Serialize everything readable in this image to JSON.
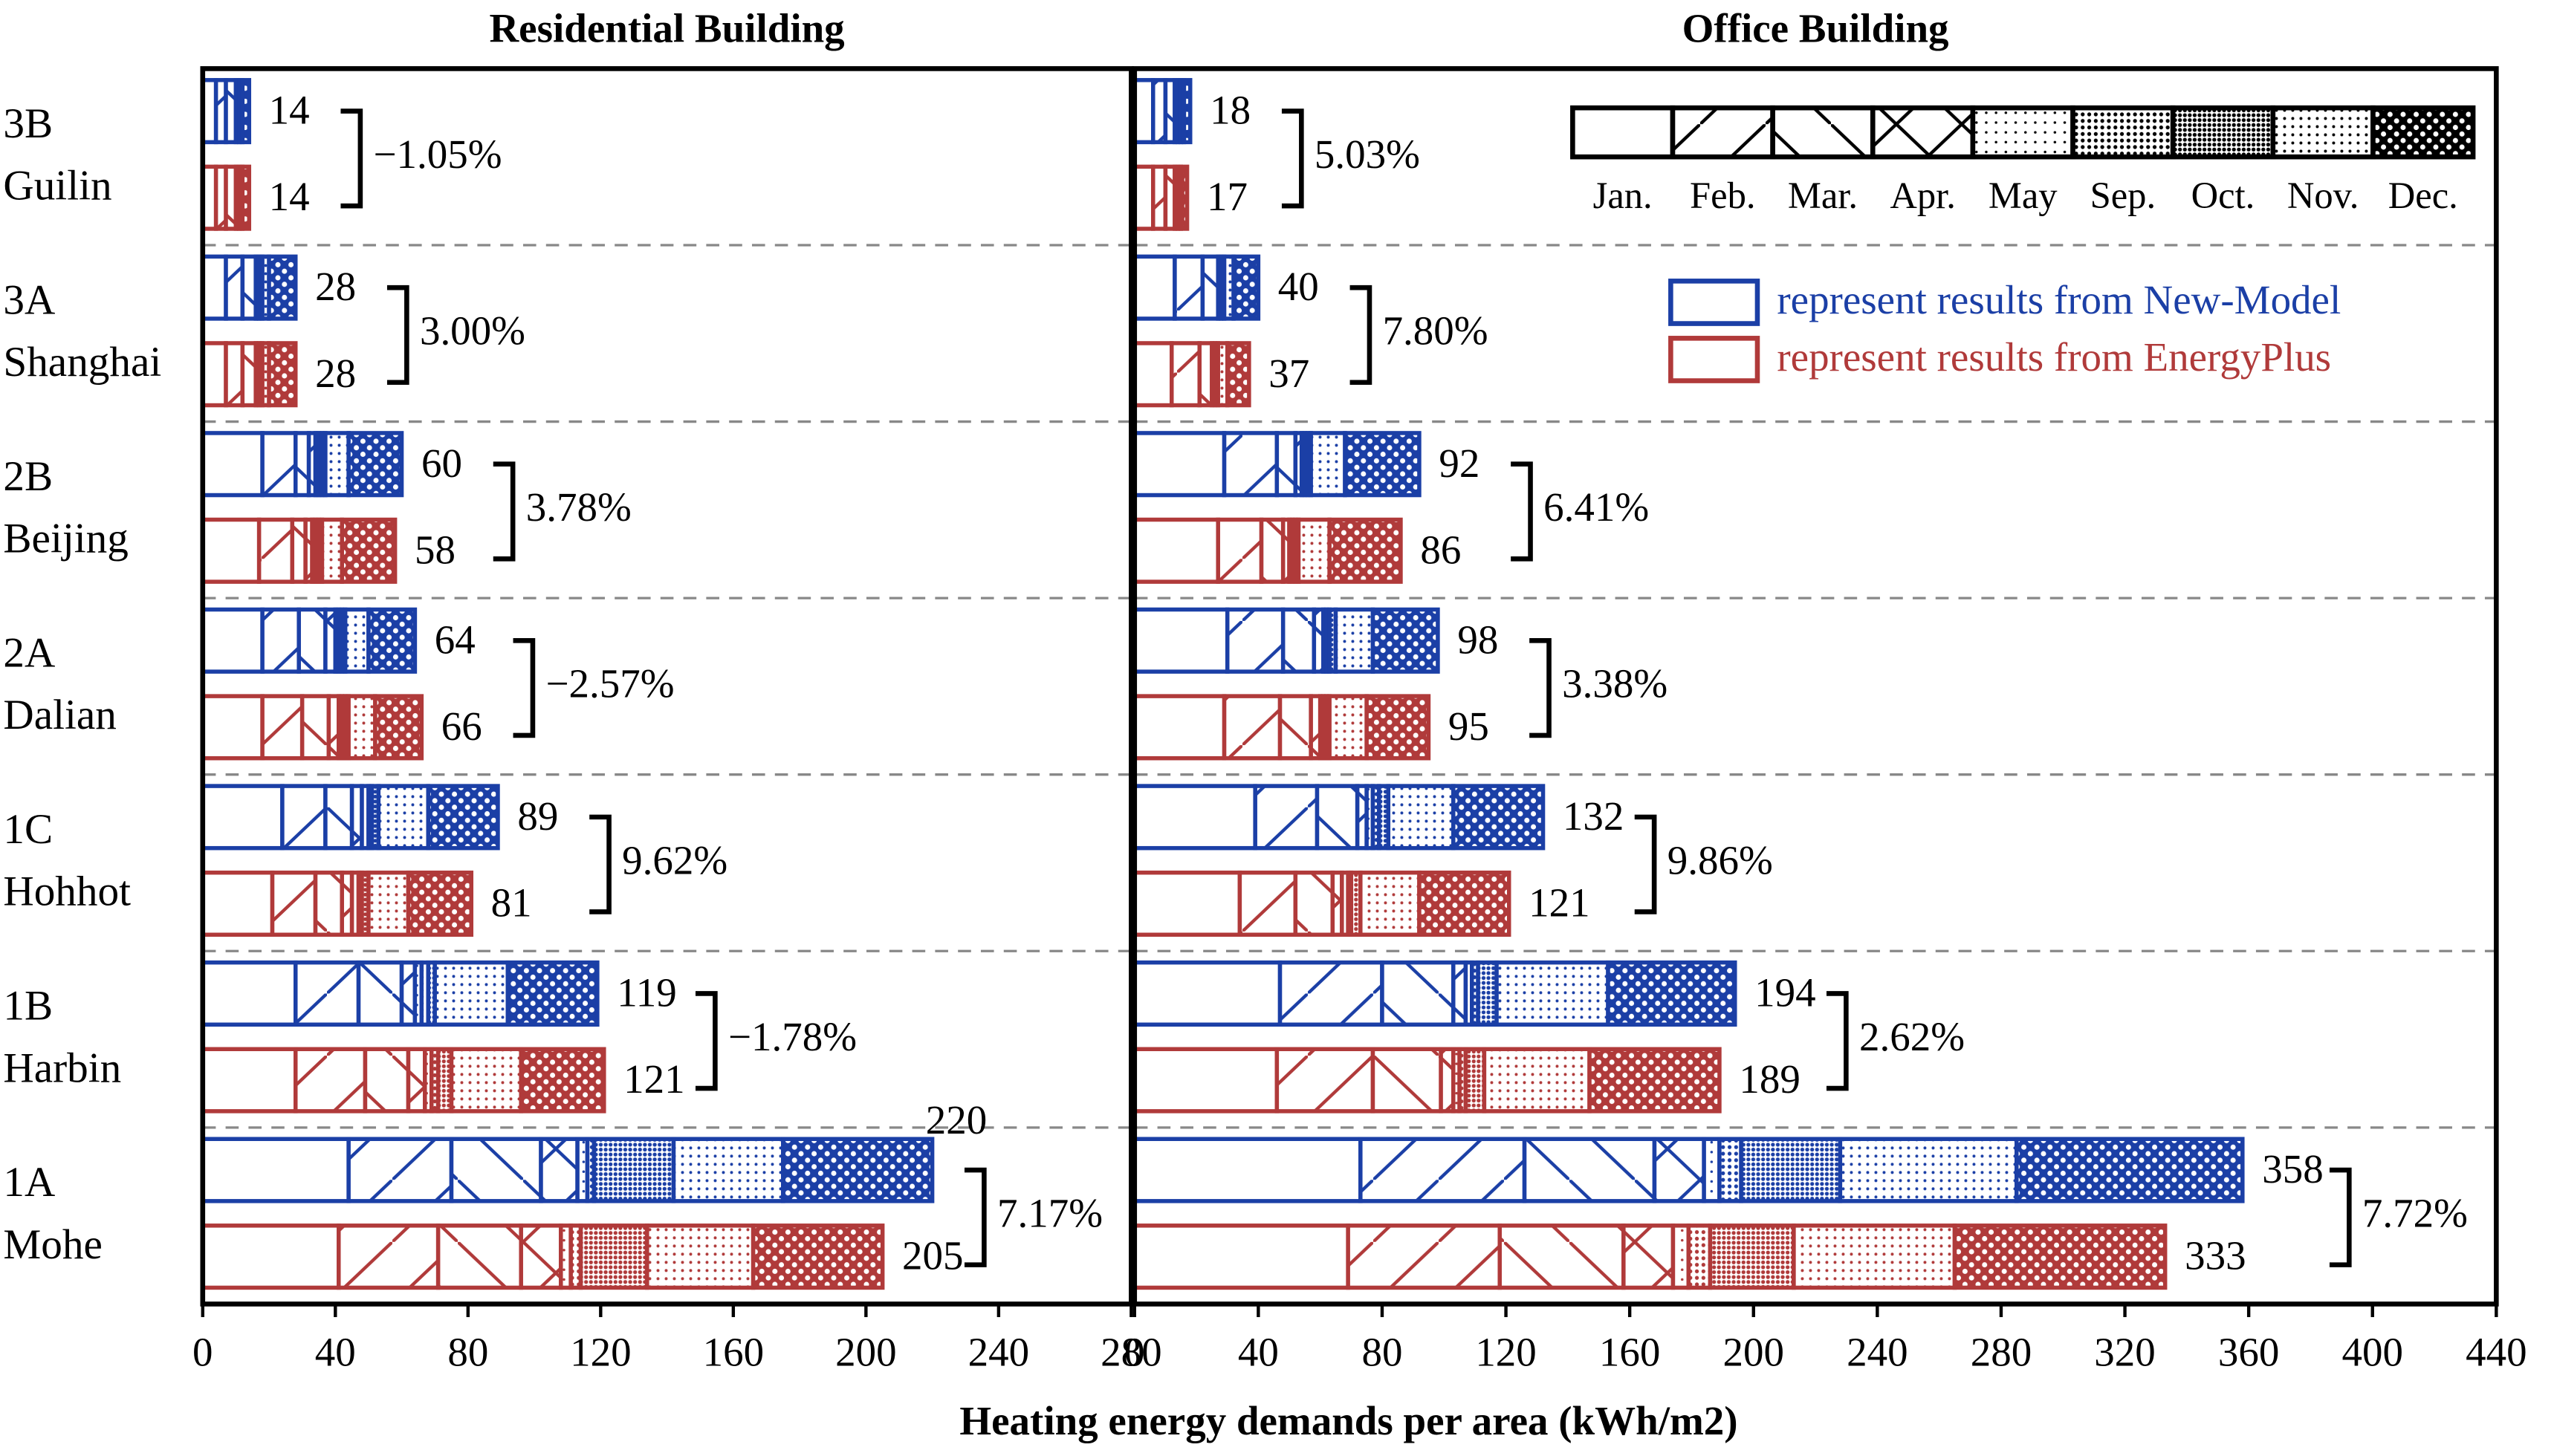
{
  "chart_data": [
    {
      "type": "bar",
      "title": "Residential Building",
      "categories": [
        "3B\nGuilin",
        "3A\nShanghai",
        "2B\nBeijing",
        "2A\nDalian",
        "1C\nHohhot",
        "1B\nHarbin",
        "1A\nMohe"
      ],
      "xlim": [
        0,
        280
      ],
      "xticks": [
        0,
        40,
        80,
        120,
        160,
        200,
        240,
        280
      ],
      "new_model": [
        [
          4,
          3,
          3,
          1,
          0,
          0,
          0,
          1,
          2
        ],
        [
          7,
          5,
          4,
          1,
          1,
          0,
          0,
          2,
          8
        ],
        [
          18,
          10,
          4,
          2,
          1,
          1,
          1,
          7,
          16
        ],
        [
          18,
          11,
          8,
          3,
          1,
          1,
          1,
          7,
          14
        ],
        [
          24,
          13,
          8,
          3,
          2,
          1,
          2,
          15,
          21
        ],
        [
          28,
          19,
          13,
          4,
          2,
          2,
          2,
          22,
          27
        ],
        [
          44,
          31,
          27,
          11,
          3,
          2,
          24,
          33,
          45
        ]
      ],
      "energyplus": [
        [
          4,
          3,
          3,
          1,
          0,
          0,
          0,
          1,
          2
        ],
        [
          7,
          5,
          4,
          1,
          1,
          0,
          0,
          2,
          8
        ],
        [
          17,
          10,
          4,
          2,
          1,
          1,
          1,
          6,
          16
        ],
        [
          18,
          12,
          8,
          3,
          1,
          1,
          1,
          8,
          14
        ],
        [
          21,
          13,
          8,
          3,
          2,
          1,
          2,
          12,
          19
        ],
        [
          28,
          21,
          13,
          5,
          2,
          2,
          4,
          21,
          25
        ],
        [
          41,
          30,
          25,
          12,
          3,
          3,
          20,
          32,
          39
        ]
      ],
      "new_model_totals": [
        14,
        28,
        60,
        64,
        89,
        119,
        220
      ],
      "energyplus_totals": [
        14,
        28,
        58,
        66,
        81,
        121,
        205
      ],
      "differences": [
        "−1.05%",
        "3.00%",
        "3.78%",
        "−2.57%",
        "9.62%",
        "−1.78%",
        "7.17%"
      ]
    },
    {
      "type": "bar",
      "title": "Office Building",
      "xlim": [
        0,
        440
      ],
      "xticks": [
        0,
        40,
        80,
        120,
        160,
        200,
        240,
        280,
        320,
        360,
        400,
        440
      ],
      "new_model": [
        [
          6,
          4,
          3,
          1,
          1,
          0,
          0,
          1,
          2
        ],
        [
          13,
          9,
          5,
          1,
          1,
          0,
          0,
          3,
          8
        ],
        [
          29,
          17,
          6,
          2,
          1,
          1,
          1,
          11,
          24
        ],
        [
          30,
          18,
          10,
          3,
          1,
          1,
          2,
          12,
          21
        ],
        [
          39,
          20,
          13,
          3,
          2,
          2,
          3,
          21,
          29
        ],
        [
          47,
          33,
          23,
          4,
          2,
          2,
          6,
          36,
          41
        ],
        [
          73,
          53,
          42,
          16,
          5,
          7,
          32,
          57,
          73
        ]
      ],
      "energyplus": [
        [
          6,
          4,
          3,
          1,
          0,
          0,
          0,
          1,
          2
        ],
        [
          12,
          9,
          4,
          1,
          1,
          0,
          0,
          3,
          7
        ],
        [
          27,
          14,
          7,
          2,
          1,
          1,
          1,
          10,
          23
        ],
        [
          29,
          18,
          10,
          3,
          1,
          1,
          1,
          12,
          20
        ],
        [
          34,
          18,
          12,
          3,
          2,
          1,
          3,
          19,
          29
        ],
        [
          46,
          31,
          22,
          4,
          2,
          2,
          6,
          34,
          42
        ],
        [
          69,
          49,
          40,
          16,
          5,
          7,
          27,
          52,
          68
        ]
      ],
      "new_model_totals": [
        18,
        40,
        92,
        98,
        132,
        194,
        358
      ],
      "energyplus_totals": [
        17,
        37,
        86,
        95,
        121,
        189,
        333
      ],
      "differences": [
        "5.03%",
        "7.80%",
        "6.41%",
        "3.38%",
        "9.86%",
        "2.62%",
        "7.72%"
      ]
    }
  ],
  "x_label": "Heating energy demands per area (kWh/m2)",
  "legend": {
    "months": [
      "Jan.",
      "Feb.",
      "Mar.",
      "Apr.",
      "May",
      "Sep.",
      "Oct.",
      "Nov.",
      "Dec."
    ],
    "models": [
      {
        "name": "represent results from New-Model",
        "color": "#1b3fa6"
      },
      {
        "name": "represent results from EnergyPlus",
        "color": "#b03a3a"
      }
    ]
  }
}
